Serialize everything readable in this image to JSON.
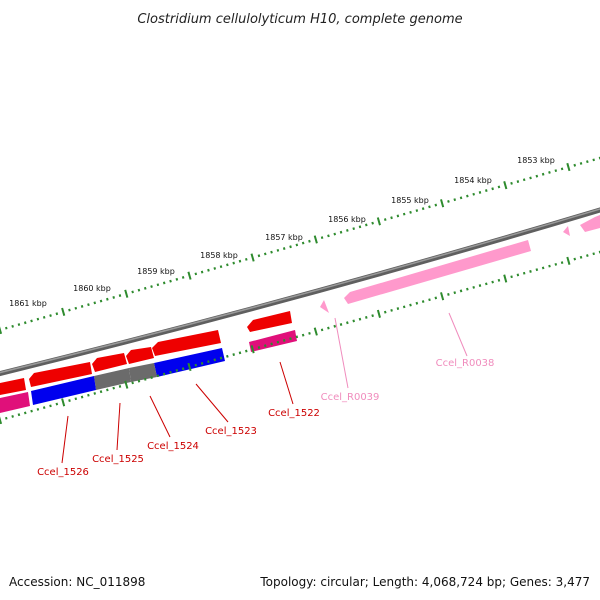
{
  "title": "Clostridium cellulolyticum H10, complete genome",
  "footer": {
    "accession": "Accession: NC_011898",
    "topology": "Topology: circular; Length: 4,068,724 bp; Genes: 3,477"
  },
  "tick_labels": [
    "1853 kbp",
    "1854 kbp",
    "1855 kbp",
    "1856 kbp",
    "1857 kbp",
    "1858 kbp",
    "1859 kbp",
    "1860 kbp",
    "1861 kbp"
  ],
  "gene_labels": [
    "Ccel_R0038",
    "Ccel_R0039",
    "Ccel_1522",
    "Ccel_1523",
    "Ccel_1524",
    "Ccel_1525",
    "Ccel_1526"
  ],
  "colors": {
    "backbone": "#7a7a7a",
    "cds": "#ee0000",
    "rna": "#ff99cc",
    "tick": "#2e8b2e",
    "blue": "#0000ee",
    "gray": "#6b6b6b",
    "magenta": "#e0107a",
    "label_red": "#cc0000",
    "label_pink": "#f08cbd"
  }
}
